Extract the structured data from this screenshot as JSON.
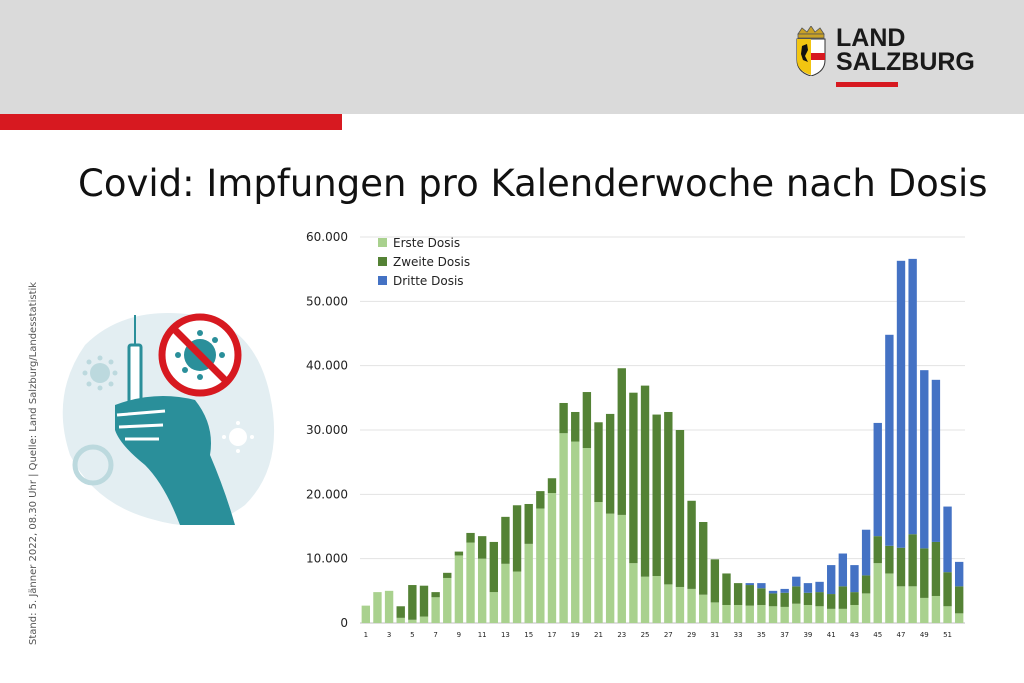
{
  "header": {
    "logo_line1": "LAND",
    "logo_line2": "SALZBURG",
    "brand_red": "#d71920",
    "band_color": "#dadada"
  },
  "title": "Covid: Impfungen pro Kalenderwoche nach Dosis",
  "source_note": "Stand: 5. Jänner 2022, 08.30 Uhr | Quelle: Land Salzburg/Landesstatistik",
  "illustration": {
    "icons": [
      "syringe-icon",
      "hand-icon",
      "no-virus-icon",
      "virus-icon"
    ]
  },
  "chart_data": {
    "type": "bar",
    "stacked": true,
    "categories": [
      "1",
      "2",
      "3",
      "4",
      "5",
      "6",
      "7",
      "8",
      "9",
      "10",
      "11",
      "12",
      "13",
      "14",
      "15",
      "16",
      "17",
      "18",
      "19",
      "20",
      "21",
      "22",
      "23",
      "24",
      "25",
      "26",
      "27",
      "28",
      "29",
      "30",
      "31",
      "32",
      "33",
      "34",
      "35",
      "36",
      "37",
      "38",
      "39",
      "40",
      "41",
      "42",
      "43",
      "44",
      "45",
      "46",
      "47",
      "48",
      "49",
      "50",
      "51",
      "52"
    ],
    "tick_labels": [
      "1",
      "3",
      "5",
      "7",
      "9",
      "11",
      "13",
      "15",
      "17",
      "19",
      "21",
      "23",
      "25",
      "27",
      "29",
      "31",
      "33",
      "35",
      "37",
      "39",
      "41",
      "43",
      "45",
      "47",
      "49",
      "51"
    ],
    "y_ticks": [
      "0",
      "10.000",
      "20.000",
      "30.000",
      "40.000",
      "50.000",
      "60.000"
    ],
    "ylim": [
      0,
      60000
    ],
    "grid": true,
    "legend_position": "top-left",
    "series": [
      {
        "name": "Erste Dosis",
        "color": "#a9d18e",
        "values": [
          2700,
          4800,
          5000,
          800,
          500,
          1000,
          4000,
          7000,
          10500,
          12500,
          10000,
          4800,
          9200,
          8000,
          12300,
          17800,
          20200,
          29500,
          28200,
          27200,
          18800,
          17000,
          16800,
          9300,
          7200,
          7300,
          6000,
          5600,
          5300,
          4400,
          3200,
          2800,
          2800,
          2700,
          2800,
          2600,
          2500,
          3000,
          2800,
          2600,
          2200,
          2200,
          2800,
          4600,
          9300,
          7700,
          5700,
          5700,
          3900,
          4200,
          2600,
          1500
        ]
      },
      {
        "name": "Zweite Dosis",
        "color": "#548235",
        "values": [
          0,
          0,
          0,
          1800,
          5400,
          4800,
          800,
          800,
          600,
          1500,
          3500,
          7800,
          7300,
          10300,
          6200,
          2700,
          2300,
          4700,
          4600,
          8700,
          12400,
          15500,
          22800,
          26500,
          29700,
          25100,
          26800,
          24400,
          13700,
          11300,
          6700,
          4900,
          3400,
          3200,
          2600,
          2000,
          2200,
          2700,
          1900,
          2200,
          2300,
          3500,
          2000,
          2800,
          4200,
          4300,
          6000,
          8100,
          7700,
          8400,
          5300,
          4200
        ]
      },
      {
        "name": "Dritte Dosis",
        "color": "#4472c4",
        "values": [
          0,
          0,
          0,
          0,
          0,
          0,
          0,
          0,
          0,
          0,
          0,
          0,
          0,
          0,
          0,
          0,
          0,
          0,
          0,
          0,
          0,
          0,
          0,
          0,
          0,
          0,
          0,
          0,
          0,
          0,
          0,
          0,
          0,
          300,
          800,
          400,
          600,
          1500,
          1500,
          1600,
          4500,
          5100,
          4200,
          7100,
          17600,
          32800,
          44600,
          42800,
          27700,
          25200,
          10200,
          3800
        ]
      }
    ]
  }
}
